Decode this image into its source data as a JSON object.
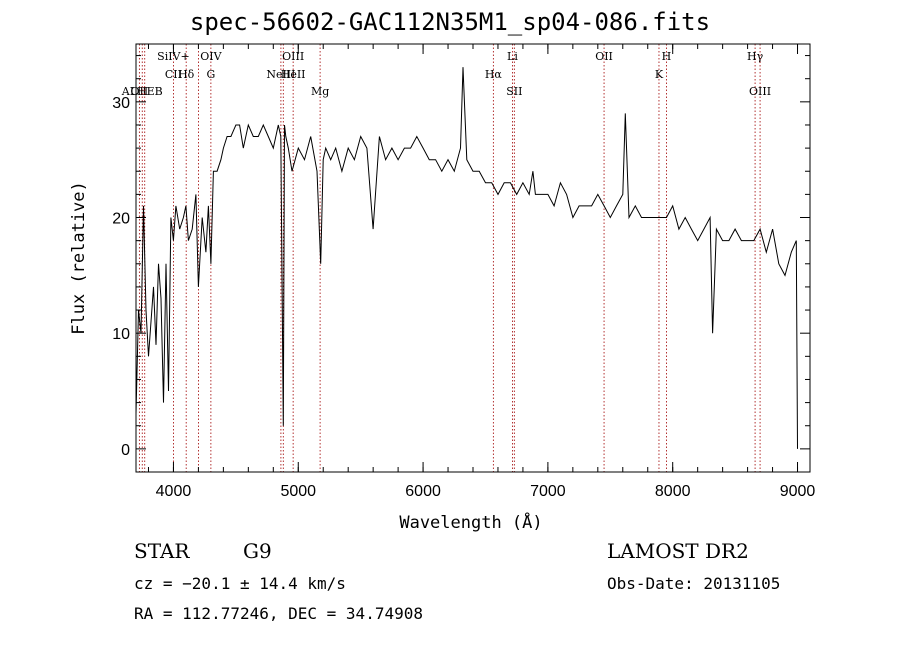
{
  "chart_data": {
    "type": "line",
    "title": "spec-56602-GAC112N35M1_sp04-086.fits",
    "xlabel": "Wavelength (Å)",
    "ylabel": "Flux (relative)",
    "xlim": [
      3700,
      9100
    ],
    "ylim": [
      -2,
      35
    ],
    "xticks": [
      4000,
      5000,
      6000,
      7000,
      8000,
      9000
    ],
    "yticks": [
      0,
      10,
      20,
      30
    ],
    "series": [
      {
        "color": "#000000",
        "x": [
          3700,
          3720,
          3740,
          3760,
          3780,
          3800,
          3820,
          3840,
          3860,
          3880,
          3900,
          3920,
          3940,
          3960,
          3980,
          4000,
          4020,
          4050,
          4080,
          4100,
          4120,
          4150,
          4180,
          4200,
          4230,
          4260,
          4280,
          4300,
          4320,
          4350,
          4380,
          4400,
          4430,
          4460,
          4500,
          4530,
          4560,
          4600,
          4640,
          4680,
          4720,
          4760,
          4800,
          4840,
          4860,
          4880,
          4890,
          4900,
          4920,
          4950,
          5000,
          5050,
          5100,
          5150,
          5180,
          5200,
          5220,
          5260,
          5300,
          5350,
          5400,
          5450,
          5500,
          5550,
          5600,
          5650,
          5700,
          5750,
          5800,
          5850,
          5900,
          5950,
          6000,
          6050,
          6100,
          6150,
          6200,
          6250,
          6300,
          6320,
          6350,
          6400,
          6450,
          6500,
          6550,
          6600,
          6650,
          6700,
          6750,
          6800,
          6850,
          6880,
          6900,
          6950,
          7000,
          7050,
          7100,
          7150,
          7200,
          7250,
          7300,
          7350,
          7400,
          7450,
          7500,
          7550,
          7600,
          7620,
          7650,
          7700,
          7750,
          7800,
          7850,
          7900,
          7950,
          8000,
          8050,
          8100,
          8150,
          8200,
          8250,
          8300,
          8320,
          8350,
          8400,
          8450,
          8500,
          8550,
          8600,
          8650,
          8700,
          8750,
          8800,
          8850,
          8900,
          8950,
          8990,
          9000
        ],
        "y": [
          3,
          12,
          10,
          21,
          12,
          8,
          11,
          14,
          9,
          16,
          13,
          4,
          16,
          5,
          20,
          18,
          21,
          19,
          20,
          21,
          18,
          19,
          22,
          14,
          20,
          17,
          21,
          16,
          24,
          24,
          25,
          26,
          27,
          27,
          28,
          28,
          26,
          28,
          27,
          27,
          28,
          27,
          26,
          28,
          27,
          2,
          28,
          27,
          26,
          24,
          26,
          25,
          27,
          24,
          16,
          25,
          26,
          25,
          26,
          24,
          26,
          25,
          27,
          26,
          19,
          27,
          25,
          26,
          25,
          26,
          26,
          27,
          26,
          25,
          25,
          24,
          25,
          24,
          26,
          33,
          25,
          24,
          24,
          23,
          23,
          22,
          23,
          23,
          22,
          23,
          22,
          24,
          22,
          22,
          22,
          21,
          23,
          22,
          20,
          21,
          21,
          21,
          22,
          21,
          20,
          21,
          22,
          29,
          20,
          21,
          20,
          20,
          20,
          20,
          20,
          21,
          19,
          20,
          19,
          18,
          19,
          20,
          10,
          19,
          18,
          18,
          19,
          18,
          18,
          18,
          19,
          17,
          19,
          16,
          15,
          17,
          18,
          0
        ]
      }
    ],
    "lines": [
      {
        "w": 3727,
        "labels": [
          "OII"
        ],
        "row": 2
      },
      {
        "w": 3750,
        "labels": [
          "ALHEB"
        ],
        "row": 2
      },
      {
        "w": 3770,
        "labels": [],
        "row": 2
      },
      {
        "w": 4000,
        "labels": [
          "SiIV+",
          "CII"
        ],
        "row": 0
      },
      {
        "w": 4102,
        "labels": [
          "Hδ"
        ],
        "row": 1
      },
      {
        "w": 4200,
        "labels": [],
        "row": 0
      },
      {
        "w": 4300,
        "labels": [
          "OIV",
          "G"
        ],
        "row": 0
      },
      {
        "w": 4861,
        "labels": [
          "NeIII"
        ],
        "row": 1
      },
      {
        "w": 4880,
        "labels": [],
        "row": 1
      },
      {
        "w": 4959,
        "labels": [
          "OIII",
          "HeII"
        ],
        "row": 0
      },
      {
        "w": 5175,
        "labels": [
          "Mg"
        ],
        "row": 2
      },
      {
        "w": 6563,
        "labels": [
          "Hα"
        ],
        "row": 1
      },
      {
        "w": 6716,
        "labels": [
          "Li"
        ],
        "row": 0
      },
      {
        "w": 6731,
        "labels": [
          "SII"
        ],
        "row": 2
      },
      {
        "w": 7450,
        "labels": [
          "OII"
        ],
        "row": 0
      },
      {
        "w": 7890,
        "labels": [
          "K"
        ],
        "row": 1
      },
      {
        "w": 7950,
        "labels": [
          "H"
        ],
        "row": 0
      },
      {
        "w": 8660,
        "labels": [
          "Hγ"
        ],
        "row": 0
      },
      {
        "w": 8700,
        "labels": [
          "OIII"
        ],
        "row": 2
      }
    ]
  },
  "footer": {
    "class": "STAR",
    "subclass": "G9",
    "survey": "LAMOST DR2",
    "cz": "cz = −20.1 ± 14.4 km/s",
    "obsdate": "Obs-Date: 20131105",
    "radec": "RA = 112.77246, DEC =  34.74908"
  }
}
